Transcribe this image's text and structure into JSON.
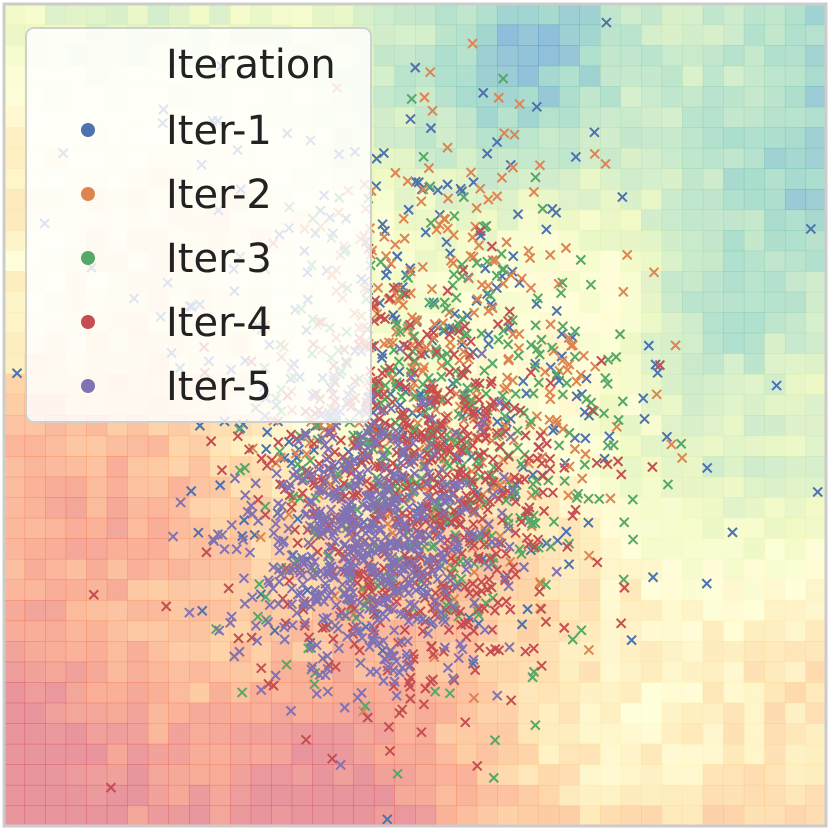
{
  "chart_data": {
    "type": "scatter",
    "title": "",
    "xlabel": "",
    "ylabel": "",
    "xlim": [
      -4.5,
      4.5
    ],
    "ylim": [
      -4.5,
      4.5
    ],
    "grid": false,
    "axes_ticks": "none",
    "marker": "x",
    "background": "decision-surface heatmap (Spectral colormap, blocky regions)",
    "legend": {
      "title": "Iteration",
      "placement": "upper-left",
      "marker": "circle"
    },
    "series": [
      {
        "name": "Iter-1",
        "color": "#4c72b0",
        "count": 300,
        "center": [
          0.0,
          0.5
        ],
        "spread": [
          1.5,
          1.5
        ]
      },
      {
        "name": "Iter-2",
        "color": "#dd8452",
        "count": 350,
        "center": [
          0.3,
          0.4
        ],
        "spread": [
          0.9,
          1.3
        ]
      },
      {
        "name": "Iter-3",
        "color": "#55a868",
        "count": 400,
        "center": [
          0.3,
          -0.3
        ],
        "spread": [
          1.0,
          1.2
        ]
      },
      {
        "name": "Iter-4",
        "color": "#c44e52",
        "count": 600,
        "center": [
          0.0,
          -1.0
        ],
        "spread": [
          0.85,
          1.1
        ]
      },
      {
        "name": "Iter-5",
        "color": "#8172b3",
        "count": 600,
        "center": [
          -0.5,
          -1.4
        ],
        "spread": [
          0.65,
          0.75
        ]
      }
    ]
  }
}
